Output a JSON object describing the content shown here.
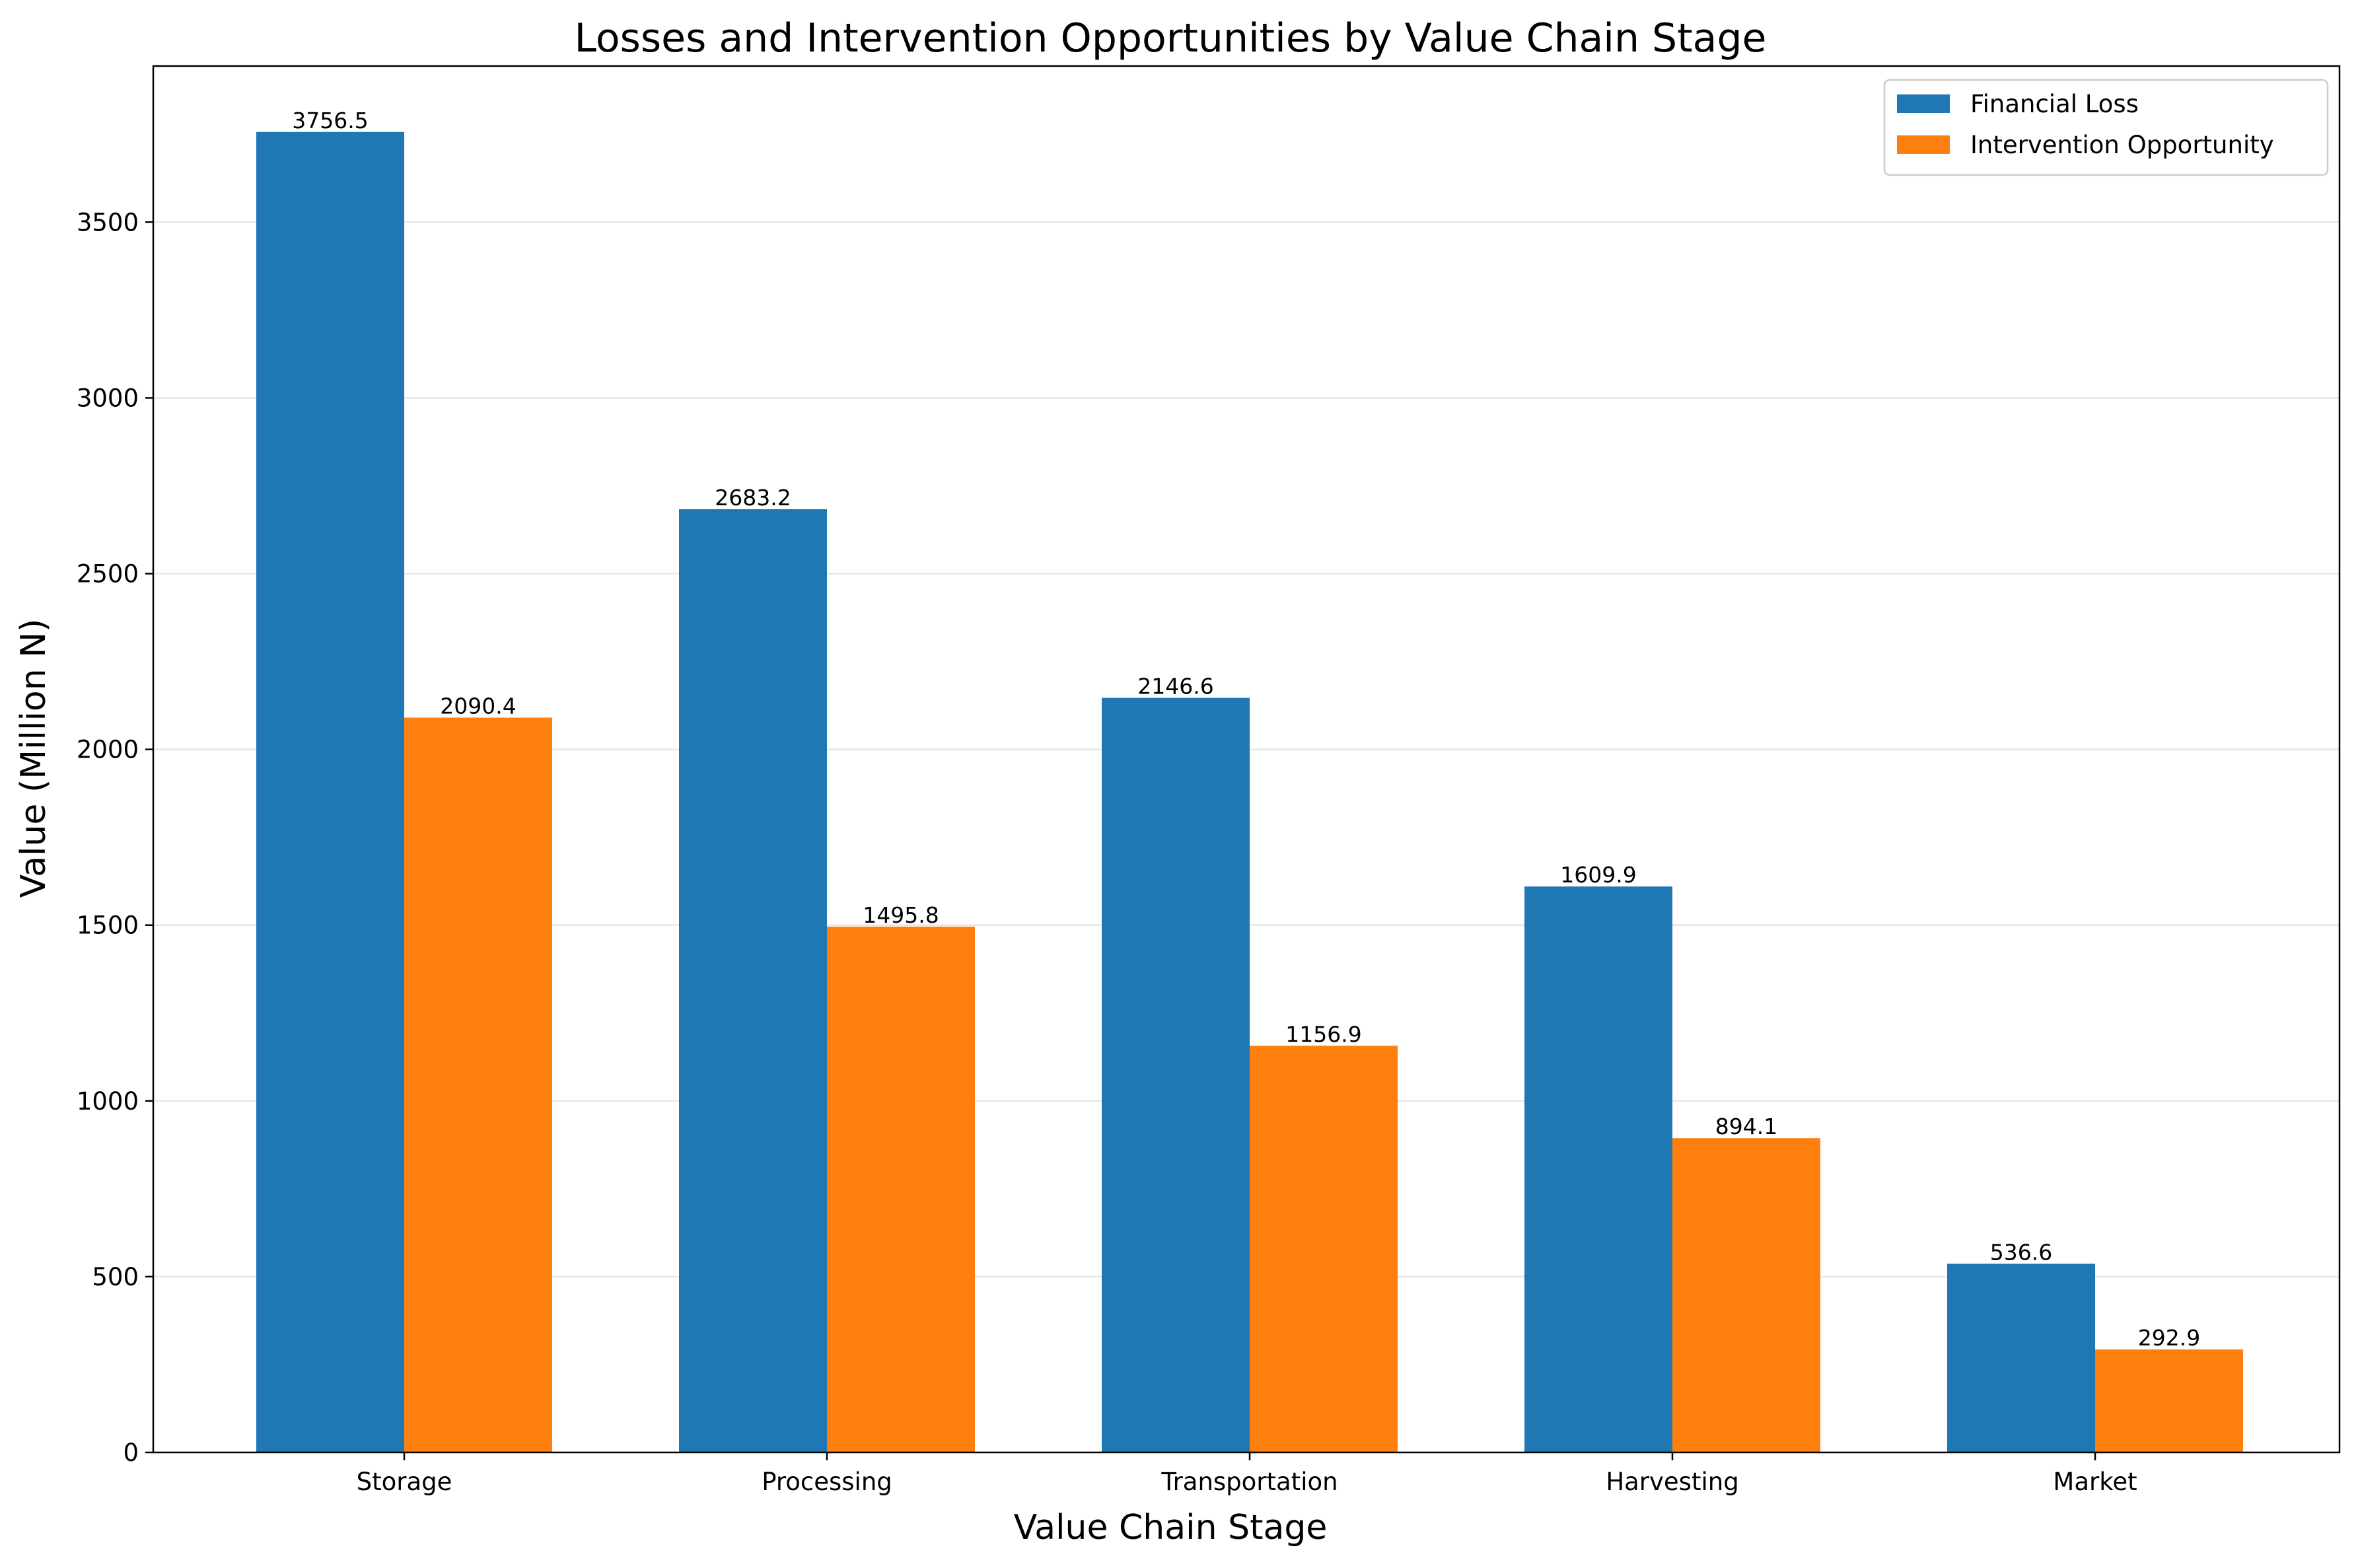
{
  "chart_data": {
    "type": "bar",
    "title": "Losses and Intervention Opportunities by Value Chain Stage",
    "xlabel": "Value Chain Stage",
    "ylabel": "Value (Million N)",
    "categories": [
      "Storage",
      "Processing",
      "Transportation",
      "Harvesting",
      "Market"
    ],
    "series": [
      {
        "name": "Financial Loss",
        "color": "#1f77b4",
        "values": [
          3756.5,
          2683.2,
          2146.6,
          1609.9,
          536.6
        ],
        "labels": [
          "3756.5",
          "2683.2",
          "2146.6",
          "1609.9",
          "536.6"
        ]
      },
      {
        "name": "Intervention Opportunity",
        "color": "#ff7f0e",
        "values": [
          2090.4,
          1495.8,
          1156.9,
          894.1,
          292.9
        ],
        "labels": [
          "2090.4",
          "1495.8",
          "1156.9",
          "894.1",
          "292.9"
        ]
      }
    ],
    "ylim": [
      0,
      3944
    ],
    "yticks": [
      0,
      500,
      1000,
      1500,
      2000,
      2500,
      3000,
      3500
    ],
    "grid": "y",
    "legend_position": "top-right"
  }
}
